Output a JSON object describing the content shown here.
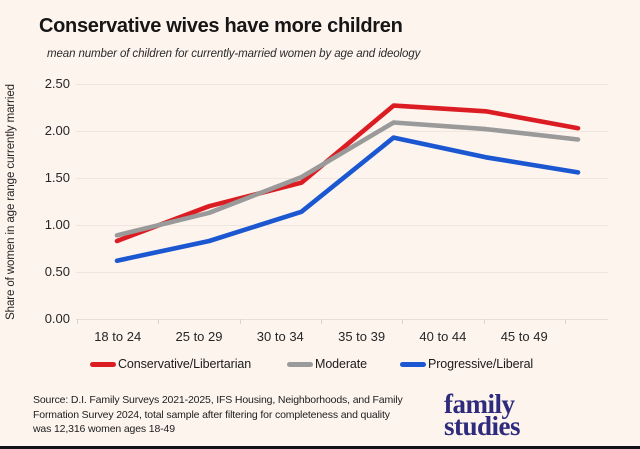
{
  "header": {
    "title": "Conservative wives have more children",
    "subtitle": "mean number of children for currently-married women by age and ideology"
  },
  "chart_data": {
    "type": "line",
    "categories": [
      "18 to 24",
      "25 to 29",
      "30 to 34",
      "35 to 39",
      "40 to 44",
      "45 to 49"
    ],
    "series": [
      {
        "name": "Conservative/Libertarian",
        "color": "#dc1c23",
        "values": [
          0.83,
          1.2,
          1.45,
          2.27,
          2.21,
          2.03
        ]
      },
      {
        "name": "Moderate",
        "color": "#9a9a9a",
        "values": [
          0.89,
          1.13,
          1.51,
          2.09,
          2.02,
          1.91
        ]
      },
      {
        "name": "Progressive/Liberal",
        "color": "#1a57d1",
        "values": [
          0.62,
          0.83,
          1.14,
          1.93,
          1.72,
          1.56
        ]
      }
    ],
    "xlabel": "",
    "ylabel": "Share of women in age range currently married",
    "ylim": [
      0,
      2.5
    ],
    "yticks": [
      "0.00",
      "0.50",
      "1.00",
      "1.50",
      "2.00",
      "2.50"
    ],
    "grid": true,
    "legend_position": "bottom"
  },
  "footer": {
    "source_lines": [
      "Source: D.I. Family Surveys 2021-2025, IFS Housing, Neighborhoods, and Family",
      "Formation Survey 2024, total sample after filtering for completeness and quality",
      "was 12,316 women ages 18-49"
    ],
    "logo_line1": "family",
    "logo_line2": "studies"
  },
  "appearance": {
    "background": "#fdf4ee",
    "logo_color": "#2e2b7d",
    "bottom_bar_color": "#101016"
  }
}
